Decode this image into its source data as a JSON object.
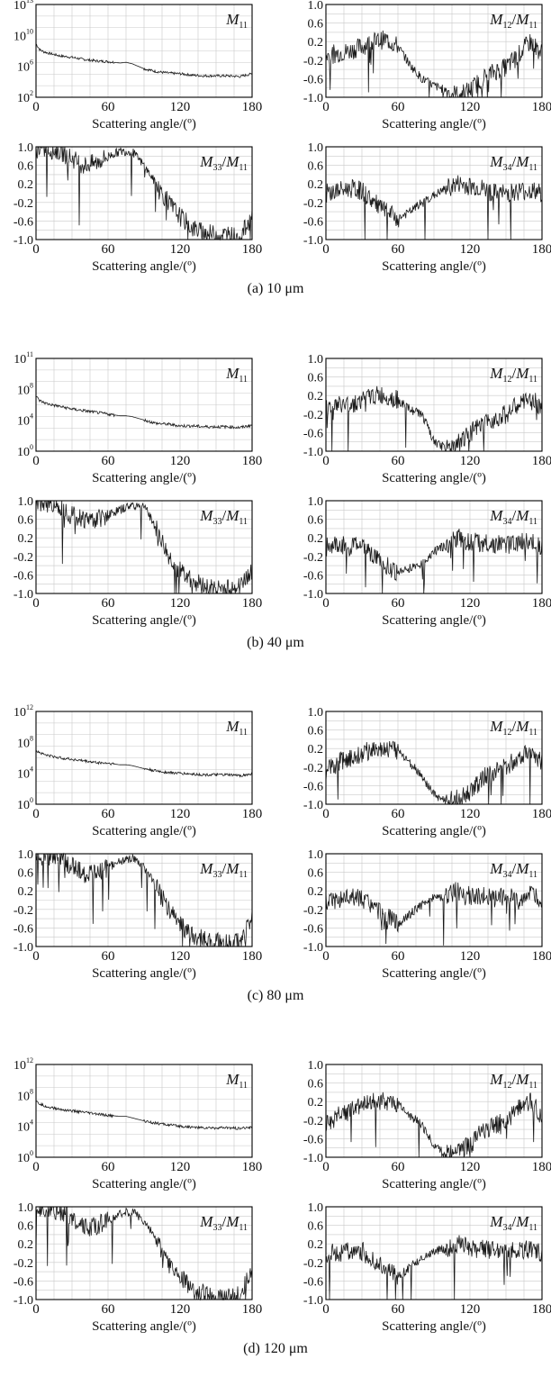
{
  "figure": {
    "xlabel": "Scattering angle/(º)",
    "x_ticks": [
      "0",
      "60",
      "120",
      "180"
    ],
    "ratio_y_ticks": [
      "1.0",
      "0.6",
      "0.2",
      "-0.2",
      "-0.6",
      "-1.0"
    ],
    "groups": [
      {
        "caption": "(a) 10 μm",
        "m11_ticks": [
          [
            "10",
            "13"
          ],
          [
            "10",
            "10"
          ],
          [
            "10",
            "6"
          ],
          [
            "10",
            "2"
          ]
        ]
      },
      {
        "caption": "(b) 40 μm",
        "m11_ticks": [
          [
            "10",
            "11"
          ],
          [
            "10",
            "8"
          ],
          [
            "10",
            "4"
          ],
          [
            "10",
            "0"
          ]
        ]
      },
      {
        "caption": "(c) 80 μm",
        "m11_ticks": [
          [
            "10",
            "12"
          ],
          [
            "10",
            "8"
          ],
          [
            "10",
            "4"
          ],
          [
            "10",
            "0"
          ]
        ]
      },
      {
        "caption": "(d) 120 μm",
        "m11_ticks": [
          [
            "10",
            "12"
          ],
          [
            "10",
            "8"
          ],
          [
            "10",
            "4"
          ],
          [
            "10",
            "0"
          ]
        ]
      }
    ]
  },
  "chart_data": [
    {
      "type": "line",
      "panel": "(a) M11",
      "label": [
        "M",
        "11",
        ""
      ],
      "xlim": [
        0,
        180
      ],
      "ylim": [
        0,
        13
      ],
      "y_scale": "log10",
      "x": [
        0,
        3,
        6,
        10,
        20,
        30,
        40,
        50,
        60,
        70,
        75,
        80,
        90,
        100,
        110,
        120,
        130,
        140,
        150,
        160,
        170,
        180
      ],
      "y": [
        7.5,
        6.7,
        6.4,
        6.2,
        5.8,
        5.6,
        5.3,
        5.1,
        5.0,
        4.8,
        4.9,
        4.7,
        4.0,
        3.6,
        3.4,
        3.3,
        3.1,
        3.0,
        3.0,
        3.0,
        2.9,
        3.3
      ]
    },
    {
      "type": "line",
      "panel": "(a) M12/M11",
      "label": [
        "M",
        "12",
        "/",
        "M",
        "11"
      ],
      "xlim": [
        0,
        180
      ],
      "ylim": [
        -1,
        1
      ],
      "x": [
        0,
        10,
        20,
        30,
        40,
        50,
        60,
        70,
        80,
        90,
        100,
        110,
        120,
        130,
        140,
        150,
        160,
        170,
        180
      ],
      "y": [
        -0.1,
        -0.05,
        0.0,
        0.1,
        0.2,
        0.25,
        0.1,
        -0.3,
        -0.6,
        -0.75,
        -0.85,
        -0.95,
        -0.85,
        -0.6,
        -0.45,
        -0.35,
        -0.1,
        0.2,
        -0.05
      ]
    },
    {
      "type": "line",
      "panel": "(a) M33/M11",
      "label": [
        "M",
        "33",
        "/",
        "M",
        "11"
      ],
      "xlim": [
        0,
        180
      ],
      "ylim": [
        -1,
        1
      ],
      "x": [
        0,
        10,
        20,
        30,
        40,
        50,
        60,
        70,
        80,
        90,
        100,
        110,
        120,
        130,
        140,
        150,
        160,
        170,
        180
      ],
      "y": [
        0.95,
        0.95,
        0.9,
        0.75,
        0.6,
        0.65,
        0.8,
        0.9,
        0.9,
        0.6,
        0.2,
        -0.2,
        -0.5,
        -0.75,
        -0.85,
        -0.9,
        -0.9,
        -0.95,
        -0.5
      ]
    },
    {
      "type": "line",
      "panel": "(a) M34/M11",
      "label": [
        "M",
        "34",
        "/",
        "M",
        "11"
      ],
      "xlim": [
        0,
        180
      ],
      "ylim": [
        -1,
        1
      ],
      "x": [
        0,
        10,
        20,
        30,
        40,
        50,
        60,
        70,
        80,
        90,
        100,
        110,
        120,
        130,
        140,
        150,
        160,
        170,
        180
      ],
      "y": [
        0.0,
        0.05,
        0.1,
        0.05,
        -0.2,
        -0.4,
        -0.55,
        -0.4,
        -0.2,
        -0.05,
        0.1,
        0.2,
        0.15,
        0.1,
        0.0,
        0.0,
        0.05,
        0.05,
        0.0
      ]
    },
    {
      "type": "line",
      "panel": "(b) M11",
      "label": [
        "M",
        "11",
        ""
      ],
      "xlim": [
        0,
        180
      ],
      "ylim": [
        0,
        11
      ],
      "y_scale": "log10",
      "x": [
        0,
        3,
        6,
        10,
        20,
        30,
        40,
        50,
        60,
        70,
        75,
        80,
        90,
        100,
        110,
        120,
        130,
        140,
        150,
        160,
        170,
        180
      ],
      "y": [
        6.5,
        6.0,
        5.8,
        5.6,
        5.3,
        5.0,
        4.8,
        4.6,
        4.4,
        4.2,
        4.2,
        4.1,
        3.7,
        3.3,
        3.2,
        3.0,
        3.0,
        2.9,
        2.9,
        2.9,
        2.8,
        3.1
      ]
    },
    {
      "type": "line",
      "panel": "(b) M12/M11",
      "label": [
        "M",
        "12",
        "/",
        "M",
        "11"
      ],
      "xlim": [
        0,
        180
      ],
      "ylim": [
        -1,
        1
      ],
      "x": [
        0,
        10,
        20,
        30,
        40,
        50,
        60,
        70,
        80,
        90,
        100,
        110,
        120,
        130,
        140,
        150,
        160,
        170,
        180
      ],
      "y": [
        -0.1,
        0.0,
        0.0,
        0.1,
        0.2,
        0.2,
        0.1,
        -0.1,
        -0.2,
        -0.8,
        -0.95,
        -0.8,
        -0.6,
        -0.45,
        -0.3,
        -0.2,
        0.0,
        0.1,
        0.0
      ]
    },
    {
      "type": "line",
      "panel": "(b) M33/M11",
      "label": [
        "M",
        "33",
        "/",
        "M",
        "11"
      ],
      "xlim": [
        0,
        180
      ],
      "ylim": [
        -1,
        1
      ],
      "x": [
        0,
        10,
        20,
        30,
        40,
        50,
        60,
        70,
        80,
        90,
        100,
        110,
        120,
        130,
        140,
        150,
        160,
        170,
        180
      ],
      "y": [
        0.95,
        0.95,
        0.9,
        0.7,
        0.6,
        0.6,
        0.7,
        0.8,
        0.9,
        0.9,
        0.4,
        -0.2,
        -0.5,
        -0.7,
        -0.85,
        -0.9,
        -0.9,
        -0.85,
        -0.5
      ]
    },
    {
      "type": "line",
      "panel": "(b) M34/M11",
      "label": [
        "M",
        "34",
        "/",
        "M",
        "11"
      ],
      "xlim": [
        0,
        180
      ],
      "ylim": [
        -1,
        1
      ],
      "x": [
        0,
        10,
        20,
        30,
        40,
        50,
        60,
        70,
        80,
        90,
        100,
        110,
        120,
        130,
        140,
        150,
        160,
        170,
        180
      ],
      "y": [
        0.0,
        0.05,
        0.0,
        0.1,
        -0.2,
        -0.4,
        -0.55,
        -0.45,
        -0.35,
        -0.1,
        0.05,
        0.2,
        0.1,
        0.1,
        0.05,
        0.05,
        0.1,
        0.1,
        0.0
      ]
    },
    {
      "type": "line",
      "panel": "(c) M11",
      "label": [
        "M",
        "11",
        ""
      ],
      "xlim": [
        0,
        180
      ],
      "ylim": [
        0,
        12
      ],
      "y_scale": "log10",
      "x": [
        0,
        3,
        6,
        10,
        20,
        30,
        40,
        50,
        60,
        70,
        75,
        80,
        90,
        100,
        110,
        120,
        130,
        140,
        150,
        160,
        170,
        180
      ],
      "y": [
        7.0,
        6.7,
        6.5,
        6.3,
        6.0,
        5.8,
        5.6,
        5.4,
        5.3,
        5.1,
        5.1,
        5.0,
        4.6,
        4.3,
        4.1,
        4.0,
        3.9,
        3.8,
        3.8,
        3.8,
        3.7,
        3.9
      ]
    },
    {
      "type": "line",
      "panel": "(c) M12/M11",
      "label": [
        "M",
        "12",
        "/",
        "M",
        "11"
      ],
      "xlim": [
        0,
        180
      ],
      "ylim": [
        -1,
        1
      ],
      "x": [
        0,
        10,
        20,
        30,
        40,
        50,
        60,
        70,
        80,
        90,
        100,
        110,
        120,
        130,
        140,
        150,
        160,
        170,
        180
      ],
      "y": [
        -0.3,
        -0.1,
        0.0,
        0.1,
        0.2,
        0.2,
        0.15,
        -0.1,
        -0.4,
        -0.8,
        -0.95,
        -0.85,
        -0.75,
        -0.45,
        -0.3,
        -0.2,
        0.0,
        0.2,
        -0.1
      ]
    },
    {
      "type": "line",
      "panel": "(c) M33/M11",
      "label": [
        "M",
        "33",
        "/",
        "M",
        "11"
      ],
      "xlim": [
        0,
        180
      ],
      "ylim": [
        -1,
        1
      ],
      "x": [
        0,
        10,
        20,
        30,
        40,
        50,
        60,
        70,
        80,
        90,
        100,
        110,
        120,
        130,
        140,
        150,
        160,
        170,
        180
      ],
      "y": [
        0.95,
        0.95,
        0.9,
        0.75,
        0.55,
        0.6,
        0.7,
        0.85,
        0.9,
        0.7,
        0.3,
        -0.2,
        -0.5,
        -0.75,
        -0.85,
        -0.9,
        -0.95,
        -0.9,
        -0.4
      ]
    },
    {
      "type": "line",
      "panel": "(c) M34/M11",
      "label": [
        "M",
        "34",
        "/",
        "M",
        "11"
      ],
      "xlim": [
        0,
        180
      ],
      "ylim": [
        -1,
        1
      ],
      "x": [
        0,
        10,
        20,
        30,
        40,
        50,
        60,
        70,
        80,
        90,
        100,
        110,
        120,
        130,
        140,
        150,
        160,
        170,
        180
      ],
      "y": [
        0.0,
        0.0,
        0.05,
        0.05,
        -0.2,
        -0.35,
        -0.5,
        -0.3,
        -0.1,
        0.05,
        0.1,
        0.2,
        0.1,
        0.1,
        0.05,
        0.05,
        0.05,
        0.1,
        0.0
      ]
    },
    {
      "type": "line",
      "panel": "(d) M11",
      "label": [
        "M",
        "11",
        ""
      ],
      "xlim": [
        0,
        180
      ],
      "ylim": [
        0,
        12
      ],
      "y_scale": "log10",
      "x": [
        0,
        3,
        6,
        10,
        20,
        30,
        40,
        50,
        60,
        70,
        75,
        80,
        90,
        100,
        110,
        120,
        130,
        140,
        150,
        160,
        170,
        180
      ],
      "y": [
        7.2,
        6.9,
        6.7,
        6.5,
        6.2,
        6.0,
        5.8,
        5.6,
        5.4,
        5.3,
        5.3,
        5.1,
        4.7,
        4.4,
        4.2,
        4.0,
        3.9,
        3.8,
        3.8,
        3.8,
        3.7,
        3.9
      ]
    },
    {
      "type": "line",
      "panel": "(d) M12/M11",
      "label": [
        "M",
        "12",
        "/",
        "M",
        "11"
      ],
      "xlim": [
        0,
        180
      ],
      "ylim": [
        -1,
        1
      ],
      "x": [
        0,
        10,
        20,
        30,
        40,
        50,
        60,
        70,
        80,
        90,
        100,
        110,
        120,
        130,
        140,
        150,
        160,
        170,
        180
      ],
      "y": [
        -0.3,
        -0.1,
        0.0,
        0.1,
        0.2,
        0.2,
        0.15,
        -0.1,
        -0.3,
        -0.75,
        -0.95,
        -0.85,
        -0.75,
        -0.45,
        -0.3,
        -0.2,
        0.05,
        0.2,
        -0.1
      ]
    },
    {
      "type": "line",
      "panel": "(d) M33/M11",
      "label": [
        "M",
        "33",
        "/",
        "M",
        "11"
      ],
      "xlim": [
        0,
        180
      ],
      "ylim": [
        -1,
        1
      ],
      "x": [
        0,
        10,
        20,
        30,
        40,
        50,
        60,
        70,
        80,
        90,
        100,
        110,
        120,
        130,
        140,
        150,
        160,
        170,
        180
      ],
      "y": [
        0.95,
        0.95,
        0.9,
        0.75,
        0.55,
        0.6,
        0.7,
        0.85,
        0.9,
        0.7,
        0.3,
        -0.2,
        -0.5,
        -0.75,
        -0.85,
        -0.95,
        -0.95,
        -0.9,
        -0.4
      ]
    },
    {
      "type": "line",
      "panel": "(d) M34/M11",
      "label": [
        "M",
        "34",
        "/",
        "M",
        "11"
      ],
      "xlim": [
        0,
        180
      ],
      "ylim": [
        -1,
        1
      ],
      "x": [
        0,
        10,
        20,
        30,
        40,
        50,
        60,
        70,
        80,
        90,
        100,
        110,
        120,
        130,
        140,
        150,
        160,
        170,
        180
      ],
      "y": [
        0.0,
        0.0,
        0.05,
        0.05,
        -0.2,
        -0.35,
        -0.5,
        -0.3,
        -0.1,
        0.05,
        0.1,
        0.2,
        0.1,
        0.1,
        0.05,
        0.05,
        0.05,
        0.1,
        0.0
      ]
    }
  ]
}
